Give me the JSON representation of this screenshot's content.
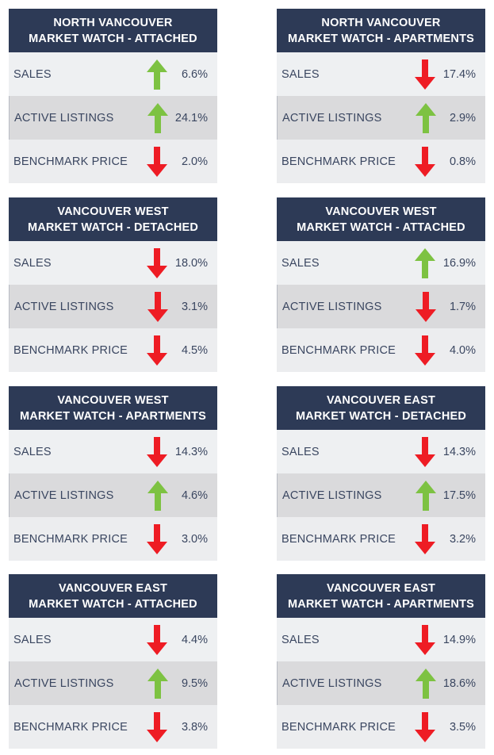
{
  "colors": {
    "header": "#2d3a56",
    "up": "#7dc242",
    "down": "#ee1c24"
  },
  "cards": [
    {
      "title1": "NORTH VANCOUVER",
      "title2": "MARKET WATCH - ATTACHED",
      "rows": [
        {
          "label": "SALES",
          "dir": "up",
          "value": "6.6%"
        },
        {
          "label": "ACTIVE LISTINGS",
          "dir": "up",
          "value": "24.1%"
        },
        {
          "label": "BENCHMARK PRICE",
          "dir": "down",
          "value": "2.0%"
        }
      ]
    },
    {
      "title1": "NORTH VANCOUVER",
      "title2": "MARKET WATCH - APARTMENTS",
      "rows": [
        {
          "label": "SALES",
          "dir": "down",
          "value": "17.4%"
        },
        {
          "label": "ACTIVE LISTINGS",
          "dir": "up",
          "value": "2.9%"
        },
        {
          "label": "BENCHMARK PRICE",
          "dir": "down",
          "value": "0.8%"
        }
      ]
    },
    {
      "title1": "VANCOUVER WEST",
      "title2": "MARKET WATCH - DETACHED",
      "rows": [
        {
          "label": "SALES",
          "dir": "down",
          "value": "18.0%"
        },
        {
          "label": "ACTIVE LISTINGS",
          "dir": "down",
          "value": "3.1%"
        },
        {
          "label": "BENCHMARK PRICE",
          "dir": "down",
          "value": "4.5%"
        }
      ]
    },
    {
      "title1": "VANCOUVER WEST",
      "title2": "MARKET WATCH - ATTACHED",
      "rows": [
        {
          "label": "SALES",
          "dir": "up",
          "value": "16.9%"
        },
        {
          "label": "ACTIVE LISTINGS",
          "dir": "down",
          "value": "1.7%"
        },
        {
          "label": "BENCHMARK PRICE",
          "dir": "down",
          "value": "4.0%"
        }
      ]
    },
    {
      "title1": "VANCOUVER WEST",
      "title2": "MARKET WATCH - APARTMENTS",
      "rows": [
        {
          "label": "SALES",
          "dir": "down",
          "value": "14.3%"
        },
        {
          "label": "ACTIVE LISTINGS",
          "dir": "up",
          "value": "4.6%"
        },
        {
          "label": "BENCHMARK PRICE",
          "dir": "down",
          "value": "3.0%"
        }
      ]
    },
    {
      "title1": "VANCOUVER EAST",
      "title2": "MARKET WATCH - DETACHED",
      "rows": [
        {
          "label": "SALES",
          "dir": "down",
          "value": "14.3%"
        },
        {
          "label": "ACTIVE LISTINGS",
          "dir": "up",
          "value": "17.5%"
        },
        {
          "label": "BENCHMARK PRICE",
          "dir": "down",
          "value": "3.2%"
        }
      ]
    },
    {
      "title1": "VANCOUVER EAST",
      "title2": "MARKET WATCH - ATTACHED",
      "rows": [
        {
          "label": "SALES",
          "dir": "down",
          "value": "4.4%"
        },
        {
          "label": "ACTIVE LISTINGS",
          "dir": "up",
          "value": "9.5%"
        },
        {
          "label": "BENCHMARK PRICE",
          "dir": "down",
          "value": "3.8%"
        }
      ]
    },
    {
      "title1": "VANCOUVER EAST",
      "title2": "MARKET WATCH - APARTMENTS",
      "rows": [
        {
          "label": "SALES",
          "dir": "down",
          "value": "14.9%"
        },
        {
          "label": "ACTIVE LISTINGS",
          "dir": "up",
          "value": "18.6%"
        },
        {
          "label": "BENCHMARK PRICE",
          "dir": "down",
          "value": "3.5%"
        }
      ]
    }
  ]
}
